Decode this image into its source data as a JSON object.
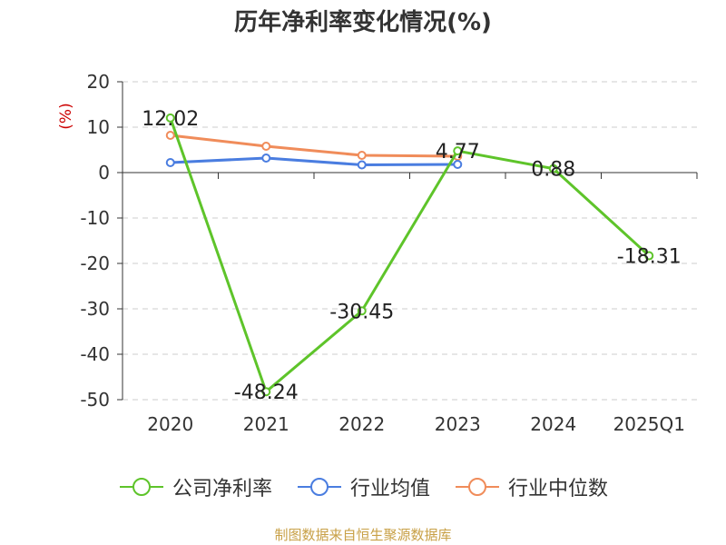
{
  "chart_data": {
    "type": "line",
    "title": "历年净利率变化情况(%)",
    "ylabel": "(%)",
    "categories": [
      "2020",
      "2021",
      "2022",
      "2023",
      "2024",
      "2025Q1"
    ],
    "ylim": [
      -50,
      20
    ],
    "yticks": [
      20,
      10,
      0,
      -10,
      -20,
      -30,
      -40,
      -50
    ],
    "grid": true,
    "legend_position": "bottom",
    "series": [
      {
        "name": "公司净利率",
        "color": "#5ec42a",
        "values": [
          12.02,
          -48.24,
          -30.45,
          4.77,
          0.88,
          -18.31
        ],
        "labels": [
          "12.02",
          "-48.24",
          "-30.45",
          "4.77",
          "0.88",
          "-18.31"
        ]
      },
      {
        "name": "行业均值",
        "color": "#4a7de0",
        "values": [
          2.2,
          3.2,
          1.7,
          1.8,
          null,
          null
        ]
      },
      {
        "name": "行业中位数",
        "color": "#f08c5a",
        "values": [
          8.2,
          5.8,
          3.8,
          3.6,
          null,
          null
        ]
      }
    ]
  },
  "source": "制图数据来自恒生聚源数据库"
}
